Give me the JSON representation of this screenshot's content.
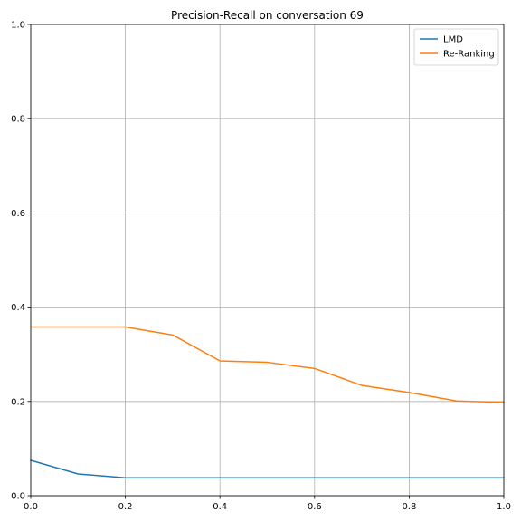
{
  "chart_data": {
    "type": "line",
    "title": "Precision-Recall on conversation 69",
    "xlabel": "",
    "ylabel": "",
    "xlim": [
      0,
      1
    ],
    "ylim": [
      0,
      1
    ],
    "x_ticks": [
      "0.0",
      "0.2",
      "0.4",
      "0.6",
      "0.8",
      "1.0"
    ],
    "y_ticks": [
      "0.0",
      "0.2",
      "0.4",
      "0.6",
      "0.8",
      "1.0"
    ],
    "grid": true,
    "legend_position": "top-right",
    "x": [
      0.0,
      0.1,
      0.2,
      0.3,
      0.4,
      0.5,
      0.6,
      0.7,
      0.8,
      0.9,
      1.0
    ],
    "series": [
      {
        "name": "LMD",
        "color": "#1f77b4",
        "values": [
          0.075,
          0.046,
          0.038,
          0.038,
          0.038,
          0.038,
          0.038,
          0.038,
          0.038,
          0.038,
          0.038
        ]
      },
      {
        "name": "Re-Ranking",
        "color": "#ff7f0e",
        "values": [
          0.358,
          0.358,
          0.358,
          0.341,
          0.286,
          0.283,
          0.27,
          0.234,
          0.219,
          0.201,
          0.198
        ]
      }
    ]
  }
}
